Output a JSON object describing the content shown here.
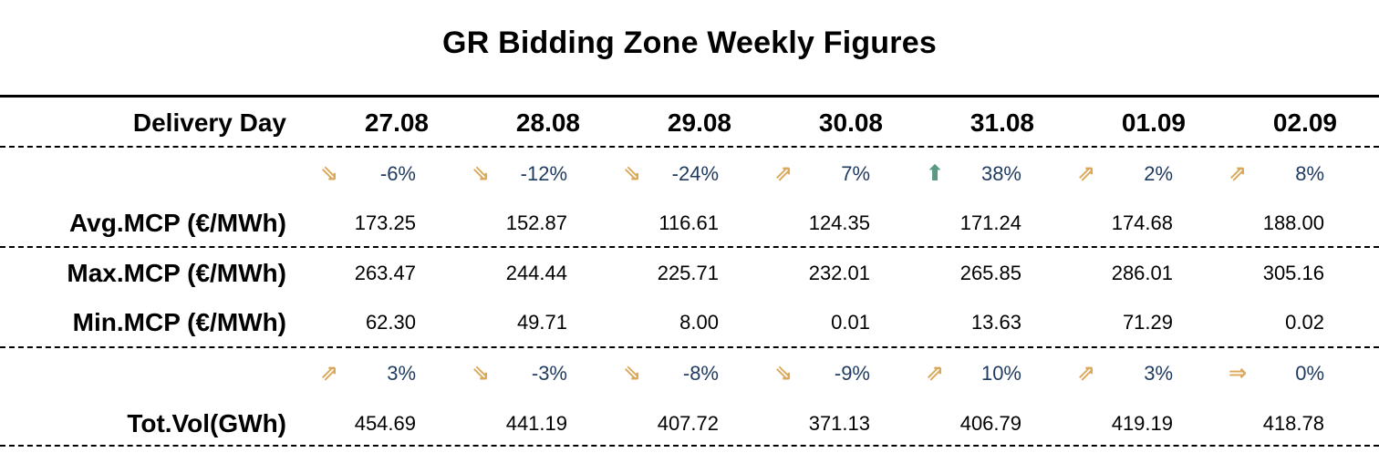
{
  "title": "GR Bidding Zone Weekly Figures",
  "colors": {
    "arrow_mild": "#dba85a",
    "arrow_up_strong": "#5a9a82",
    "pct_text": "#1f3a5f"
  },
  "header": {
    "label": "Delivery Day",
    "days": [
      "27.08",
      "28.08",
      "29.08",
      "30.08",
      "31.08",
      "01.09",
      "02.09"
    ]
  },
  "price_change": [
    {
      "value": "-6%",
      "icon": "arrow-down-right-icon"
    },
    {
      "value": "-12%",
      "icon": "arrow-down-right-icon"
    },
    {
      "value": "-24%",
      "icon": "arrow-down-right-icon"
    },
    {
      "value": "7%",
      "icon": "arrow-up-right-icon"
    },
    {
      "value": "38%",
      "icon": "arrow-up-strong-icon"
    },
    {
      "value": "2%",
      "icon": "arrow-up-right-icon"
    },
    {
      "value": "8%",
      "icon": "arrow-up-right-icon"
    }
  ],
  "rows": {
    "avg": {
      "label": "Avg.MCP (€/MWh)",
      "values": [
        "173.25",
        "152.87",
        "116.61",
        "124.35",
        "171.24",
        "174.68",
        "188.00"
      ]
    },
    "max": {
      "label": "Max.MCP (€/MWh)",
      "values": [
        "263.47",
        "244.44",
        "225.71",
        "232.01",
        "265.85",
        "286.01",
        "305.16"
      ]
    },
    "min": {
      "label": "Min.MCP (€/MWh)",
      "values": [
        "62.30",
        "49.71",
        "8.00",
        "0.01",
        "13.63",
        "71.29",
        "0.02"
      ]
    },
    "vol": {
      "label": "Tot.Vol(GWh)",
      "values": [
        "454.69",
        "441.19",
        "407.72",
        "371.13",
        "406.79",
        "419.19",
        "418.78"
      ]
    }
  },
  "volume_change": [
    {
      "value": "3%",
      "icon": "arrow-up-right-icon"
    },
    {
      "value": "-3%",
      "icon": "arrow-down-right-icon"
    },
    {
      "value": "-8%",
      "icon": "arrow-down-right-icon"
    },
    {
      "value": "-9%",
      "icon": "arrow-down-right-icon"
    },
    {
      "value": "10%",
      "icon": "arrow-up-right-icon"
    },
    {
      "value": "3%",
      "icon": "arrow-up-right-icon"
    },
    {
      "value": "0%",
      "icon": "arrow-right-icon"
    }
  ]
}
